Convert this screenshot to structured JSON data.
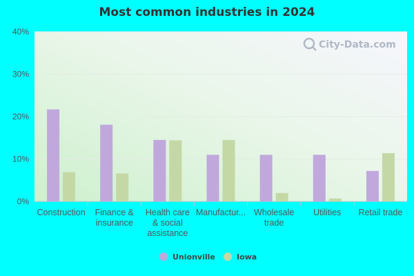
{
  "chart_data": {
    "type": "bar",
    "title": "Most common industries in 2024",
    "categories": [
      [
        "Construction"
      ],
      [
        "Finance &",
        "insurance"
      ],
      [
        "Health care",
        "& social",
        "assistance"
      ],
      [
        "Manufactur..."
      ],
      [
        "Wholesale",
        "trade"
      ],
      [
        "Utilities"
      ],
      [
        "Retail trade"
      ]
    ],
    "series": [
      {
        "name": "Unionville",
        "color": "#c0a8dc",
        "values": [
          21.7,
          18.1,
          14.5,
          11.0,
          11.0,
          11.0,
          7.2
        ]
      },
      {
        "name": "Iowa",
        "color": "#c4d8a6",
        "values": [
          6.9,
          6.6,
          14.4,
          14.5,
          2.0,
          0.7,
          11.4
        ]
      }
    ],
    "ylim": [
      0,
      40
    ],
    "yticks": [
      "0%",
      "10%",
      "20%",
      "30%",
      "40%"
    ],
    "ytick_values": [
      0,
      10,
      20,
      30,
      40
    ],
    "grid": true,
    "legend_position": "bottom"
  },
  "watermark": "City-Data.com"
}
